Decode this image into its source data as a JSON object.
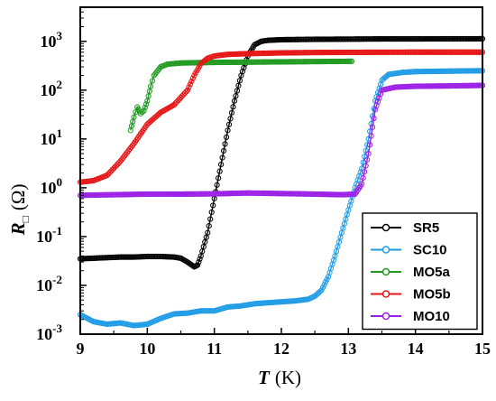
{
  "chart_data": {
    "type": "scatter",
    "title": "",
    "xlabel": {
      "symbol": "T",
      "unit": "(K)"
    },
    "ylabel": {
      "symbol": "R",
      "subscript": "□",
      "unit": "(Ω)"
    },
    "xlim": [
      9,
      15
    ],
    "ylim": [
      0.001,
      5000
    ],
    "y_scale": "log",
    "grid": false,
    "legend_position": "bottom-right",
    "x_ticks": [
      "9",
      "10",
      "11",
      "12",
      "13",
      "14",
      "15"
    ],
    "y_ticks": [
      {
        "base": "10",
        "exp": "-3"
      },
      {
        "base": "10",
        "exp": "-2"
      },
      {
        "base": "10",
        "exp": "-1"
      },
      {
        "base": "10",
        "exp": "0"
      },
      {
        "base": "10",
        "exp": "1"
      },
      {
        "base": "10",
        "exp": "2"
      },
      {
        "base": "10",
        "exp": "3"
      }
    ],
    "series": [
      {
        "name": "SR5",
        "color": "#000000",
        "points": [
          [
            9.0,
            0.035
          ],
          [
            9.2,
            0.036
          ],
          [
            9.4,
            0.037
          ],
          [
            9.6,
            0.038
          ],
          [
            9.8,
            0.038
          ],
          [
            10.0,
            0.039
          ],
          [
            10.2,
            0.039
          ],
          [
            10.4,
            0.038
          ],
          [
            10.5,
            0.036
          ],
          [
            10.6,
            0.03
          ],
          [
            10.7,
            0.024
          ],
          [
            10.75,
            0.026
          ],
          [
            10.8,
            0.04
          ],
          [
            10.9,
            0.12
          ],
          [
            11.0,
            0.6
          ],
          [
            11.1,
            3.0
          ],
          [
            11.2,
            15
          ],
          [
            11.3,
            60
          ],
          [
            11.4,
            200
          ],
          [
            11.5,
            500
          ],
          [
            11.6,
            850
          ],
          [
            11.7,
            1000
          ],
          [
            11.8,
            1050
          ],
          [
            12.0,
            1080
          ],
          [
            12.5,
            1100
          ],
          [
            13.0,
            1110
          ],
          [
            13.5,
            1120
          ],
          [
            14.0,
            1120
          ],
          [
            14.5,
            1125
          ],
          [
            15.0,
            1130
          ]
        ]
      },
      {
        "name": "SC10",
        "color": "#1e9be6",
        "points": [
          [
            9.0,
            0.0025
          ],
          [
            9.2,
            0.0018
          ],
          [
            9.4,
            0.0016
          ],
          [
            9.6,
            0.0017
          ],
          [
            9.8,
            0.0015
          ],
          [
            10.0,
            0.0016
          ],
          [
            10.2,
            0.0021
          ],
          [
            10.4,
            0.0026
          ],
          [
            10.6,
            0.0027
          ],
          [
            10.8,
            0.003
          ],
          [
            11.0,
            0.003
          ],
          [
            11.2,
            0.0036
          ],
          [
            11.4,
            0.0038
          ],
          [
            11.6,
            0.0042
          ],
          [
            11.8,
            0.0044
          ],
          [
            12.0,
            0.0046
          ],
          [
            12.2,
            0.0048
          ],
          [
            12.4,
            0.0052
          ],
          [
            12.5,
            0.006
          ],
          [
            12.6,
            0.008
          ],
          [
            12.7,
            0.015
          ],
          [
            12.8,
            0.04
          ],
          [
            12.9,
            0.12
          ],
          [
            13.0,
            0.35
          ],
          [
            13.1,
            1.0
          ],
          [
            13.2,
            2.5
          ],
          [
            13.3,
            10
          ],
          [
            13.4,
            60
          ],
          [
            13.5,
            160
          ],
          [
            13.6,
            210
          ],
          [
            13.8,
            230
          ],
          [
            14.0,
            240
          ],
          [
            14.5,
            245
          ],
          [
            15.0,
            250
          ]
        ]
      },
      {
        "name": "MO5a",
        "color": "#1f9a1f",
        "points": [
          [
            9.75,
            15
          ],
          [
            9.8,
            28
          ],
          [
            9.85,
            45
          ],
          [
            9.9,
            33
          ],
          [
            9.95,
            38
          ],
          [
            10.0,
            60
          ],
          [
            10.05,
            120
          ],
          [
            10.1,
            200
          ],
          [
            10.2,
            300
          ],
          [
            10.3,
            340
          ],
          [
            10.5,
            360
          ],
          [
            11.0,
            370
          ],
          [
            11.5,
            375
          ],
          [
            12.0,
            380
          ],
          [
            12.5,
            385
          ],
          [
            13.05,
            390
          ]
        ]
      },
      {
        "name": "MO5b",
        "color": "#e61414",
        "points": [
          [
            9.0,
            1.3
          ],
          [
            9.2,
            1.4
          ],
          [
            9.4,
            1.8
          ],
          [
            9.6,
            3.5
          ],
          [
            9.8,
            8
          ],
          [
            10.0,
            20
          ],
          [
            10.2,
            35
          ],
          [
            10.4,
            50
          ],
          [
            10.6,
            100
          ],
          [
            10.7,
            200
          ],
          [
            10.8,
            350
          ],
          [
            10.9,
            450
          ],
          [
            11.0,
            500
          ],
          [
            11.2,
            540
          ],
          [
            11.5,
            560
          ],
          [
            12.0,
            580
          ],
          [
            12.5,
            590
          ],
          [
            13.0,
            595
          ],
          [
            14.0,
            600
          ],
          [
            15.0,
            600
          ]
        ]
      },
      {
        "name": "MO10",
        "color": "#9b1fe6",
        "points": [
          [
            9.0,
            0.7
          ],
          [
            9.5,
            0.72
          ],
          [
            10.0,
            0.74
          ],
          [
            10.5,
            0.74
          ],
          [
            11.0,
            0.75
          ],
          [
            11.5,
            0.78
          ],
          [
            12.0,
            0.76
          ],
          [
            12.5,
            0.74
          ],
          [
            12.9,
            0.72
          ],
          [
            13.1,
            0.74
          ],
          [
            13.2,
            1.2
          ],
          [
            13.3,
            5
          ],
          [
            13.4,
            40
          ],
          [
            13.5,
            100
          ],
          [
            13.7,
            115
          ],
          [
            14.0,
            120
          ],
          [
            14.5,
            122
          ],
          [
            15.0,
            125
          ]
        ]
      }
    ]
  }
}
